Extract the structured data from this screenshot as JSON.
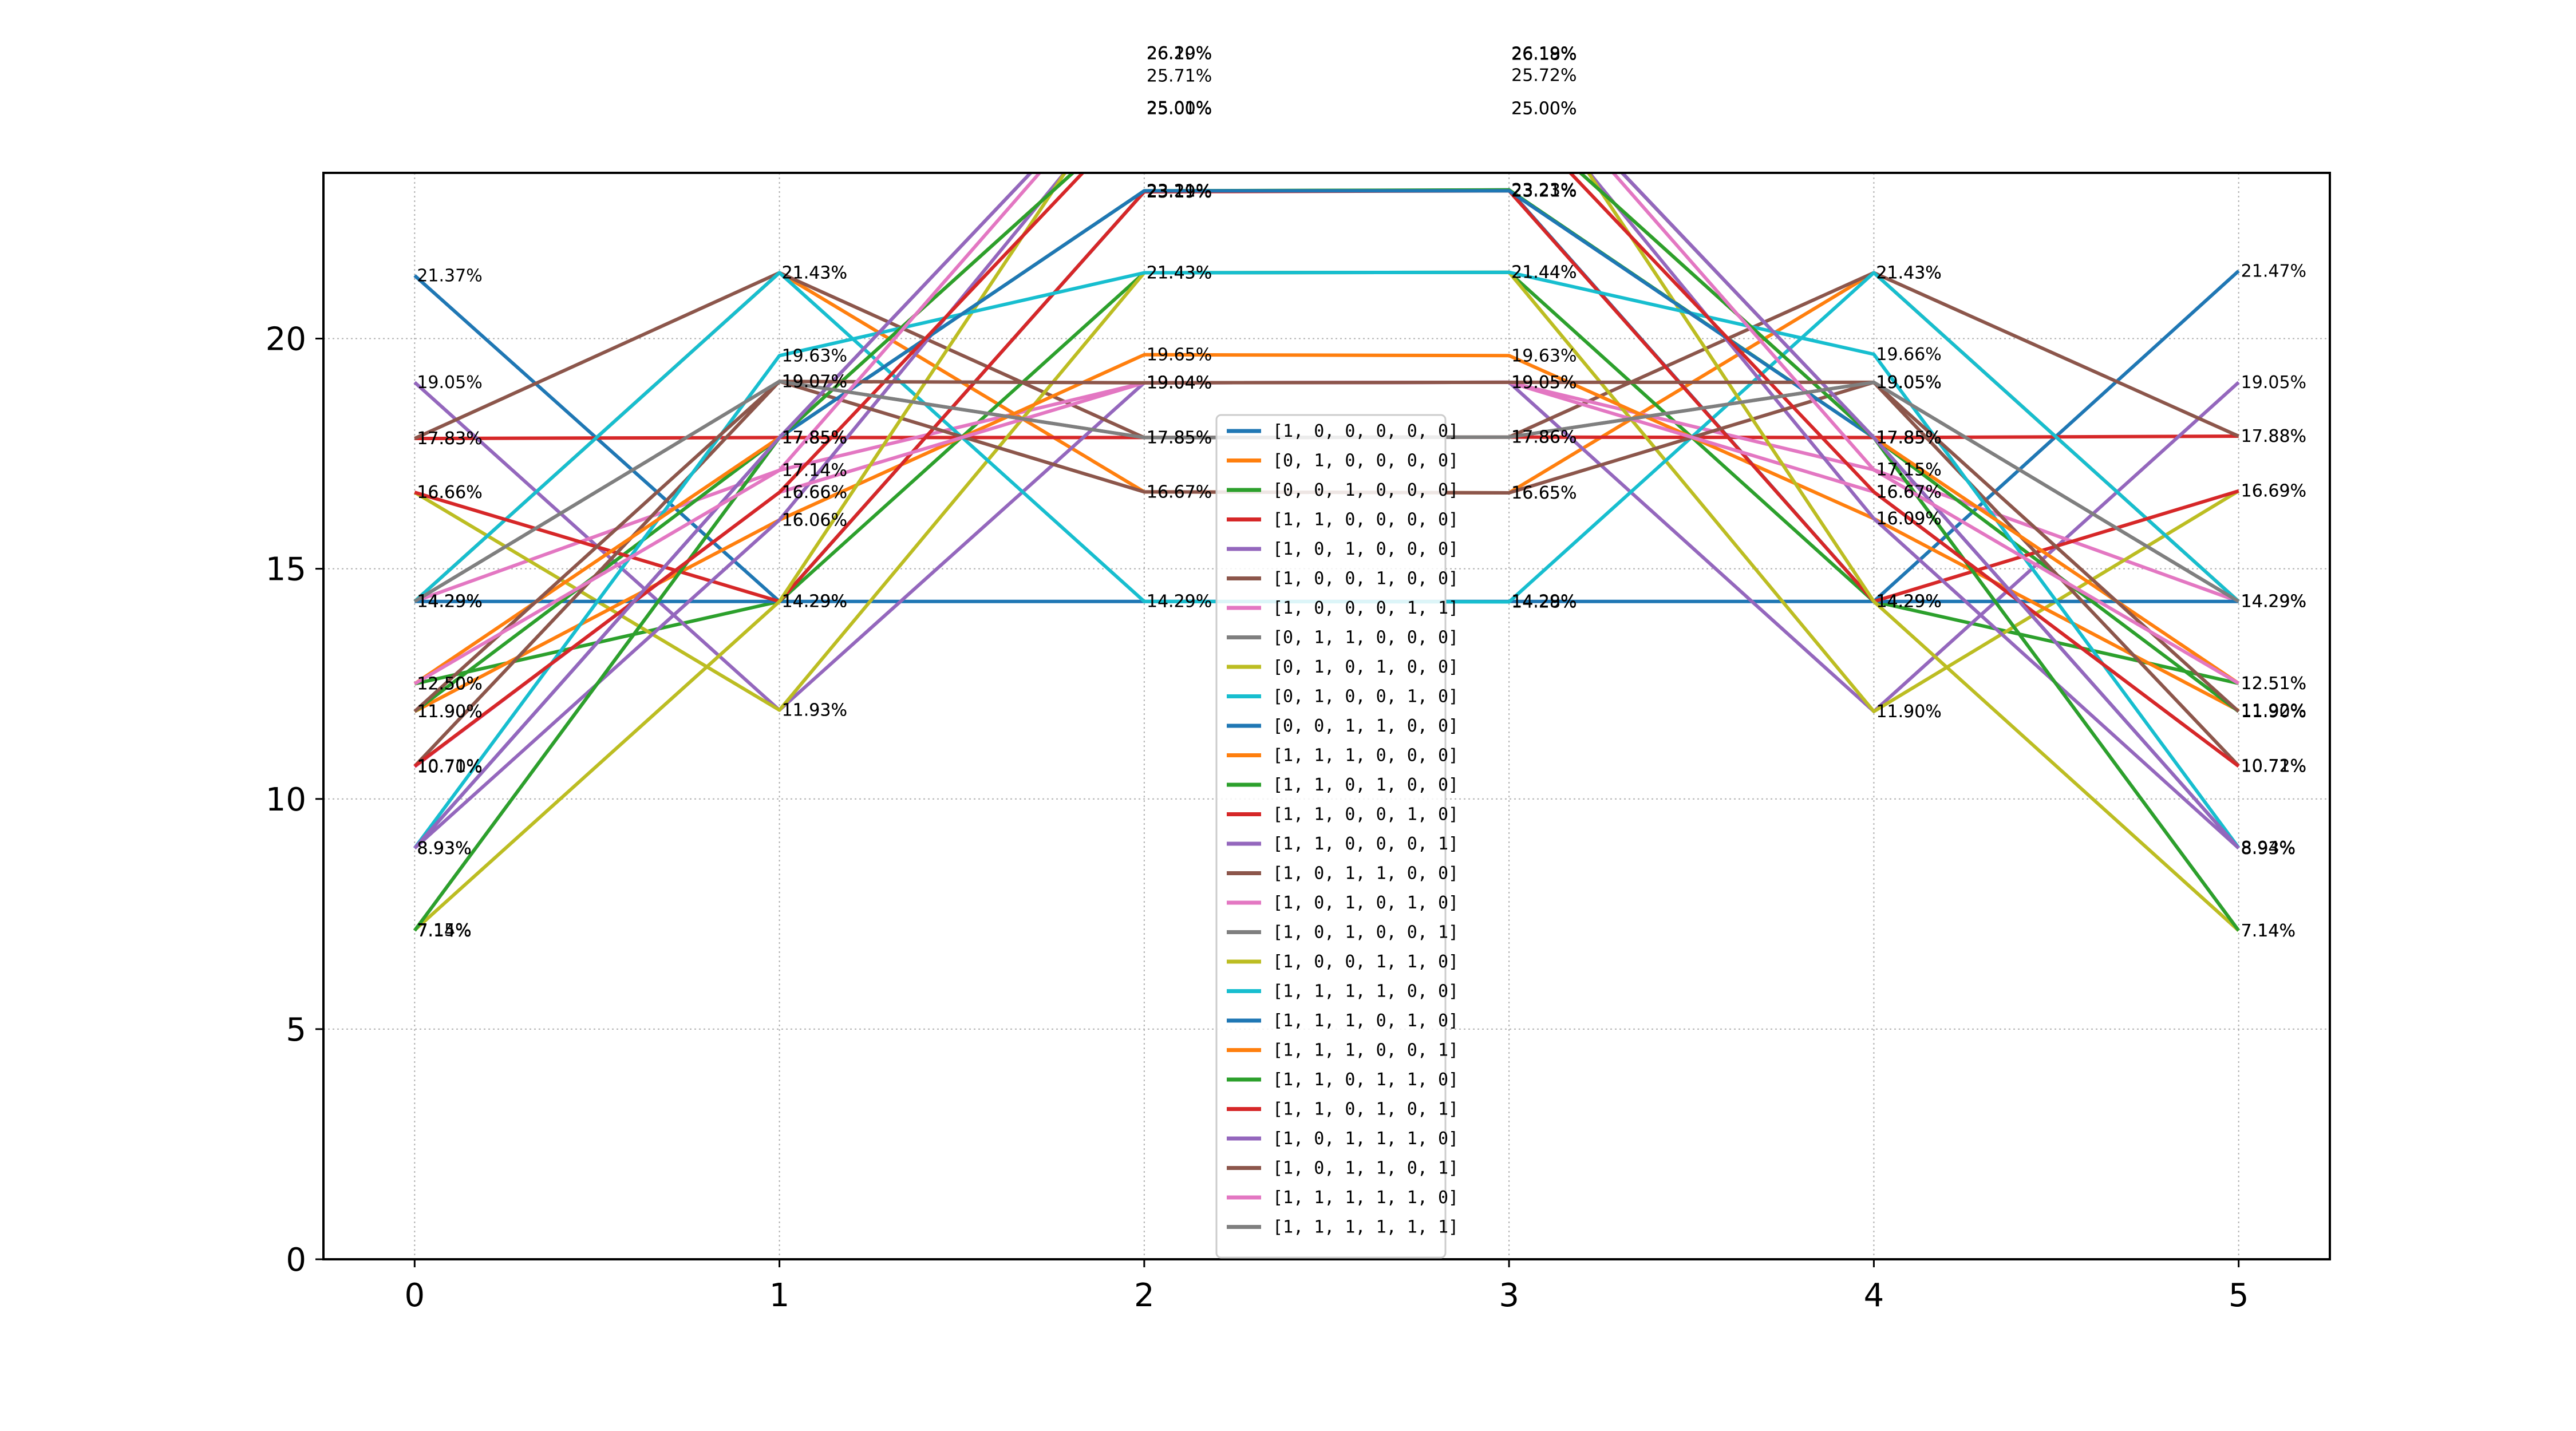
{
  "chart_data": {
    "type": "line",
    "title": "",
    "xlabel": "",
    "ylabel": "",
    "x": [
      0,
      1,
      2,
      3,
      4,
      5
    ],
    "xticks": [
      "0",
      "1",
      "2",
      "3",
      "4",
      "5"
    ],
    "yticks": [
      "0",
      "5",
      "10",
      "15",
      "20"
    ],
    "xlim": [
      -0.25,
      5.25
    ],
    "ylim": [
      0,
      23.6
    ],
    "grid": true,
    "legend_position": "center",
    "series": [
      {
        "name": "[1, 0, 0, 0, 0, 0]",
        "color": "#1f77b4",
        "values": [
          21.37,
          14.29,
          14.29,
          14.29,
          14.29,
          21.47
        ]
      },
      {
        "name": "[0, 1, 0, 0, 0, 0]",
        "color": "#ff7f0e",
        "values": [
          14.29,
          21.43,
          16.67,
          16.65,
          21.43,
          14.29
        ]
      },
      {
        "name": "[0, 0, 1, 0, 0, 0]",
        "color": "#2ca02c",
        "values": [
          12.5,
          14.29,
          21.43,
          21.44,
          14.29,
          12.51
        ]
      },
      {
        "name": "[1, 1, 0, 0, 0, 0]",
        "color": "#d62728",
        "values": [
          17.83,
          17.85,
          17.85,
          17.86,
          17.85,
          17.88
        ]
      },
      {
        "name": "[1, 0, 1, 0, 0, 0]",
        "color": "#9467bd",
        "values": [
          19.05,
          11.93,
          19.04,
          19.05,
          11.9,
          19.05
        ]
      },
      {
        "name": "[1, 0, 0, 1, 0, 0]",
        "color": "#8c564b",
        "values": [
          17.83,
          21.43,
          17.85,
          17.86,
          21.43,
          17.88
        ]
      },
      {
        "name": "[1, 0, 0, 0, 1, 1]",
        "color": "#e377c2",
        "values": [
          14.29,
          17.14,
          19.04,
          19.05,
          17.15,
          14.29
        ]
      },
      {
        "name": "[0, 1, 1, 0, 0, 0]",
        "color": "#7f7f7f",
        "values": [
          14.29,
          19.07,
          17.85,
          17.86,
          19.05,
          14.29
        ]
      },
      {
        "name": "[0, 1, 0, 1, 0, 0]",
        "color": "#bcbd22",
        "values": [
          16.66,
          11.93,
          21.43,
          21.44,
          11.9,
          16.69
        ]
      },
      {
        "name": "[0, 1, 0, 0, 1, 0]",
        "color": "#17becf",
        "values": [
          14.29,
          21.43,
          14.29,
          14.28,
          21.43,
          14.29
        ]
      },
      {
        "name": "[0, 0, 1, 1, 0, 0]",
        "color": "#1f77b4",
        "values": [
          14.29,
          14.29,
          23.19,
          23.23,
          14.29,
          14.29
        ]
      },
      {
        "name": "[1, 1, 1, 0, 0, 0]",
        "color": "#ff7f0e",
        "values": [
          11.9,
          16.06,
          19.65,
          19.63,
          16.09,
          11.92
        ]
      },
      {
        "name": "[1, 1, 0, 1, 0, 0]",
        "color": "#2ca02c",
        "values": [
          11.9,
          17.85,
          23.21,
          23.23,
          17.85,
          11.9
        ]
      },
      {
        "name": "[1, 1, 0, 0, 1, 0]",
        "color": "#d62728",
        "values": [
          16.66,
          14.29,
          23.19,
          23.21,
          14.29,
          16.69
        ]
      },
      {
        "name": "[1, 1, 0, 0, 0, 1]",
        "color": "#9467bd",
        "values": [
          8.93,
          16.06,
          25.71,
          25.72,
          16.09,
          8.93
        ]
      },
      {
        "name": "[1, 0, 1, 1, 0, 0]",
        "color": "#8c564b",
        "values": [
          10.71,
          19.07,
          16.67,
          16.65,
          19.05,
          10.72
        ]
      },
      {
        "name": "[1, 0, 1, 0, 1, 0]",
        "color": "#e377c2",
        "values": [
          10.7,
          16.66,
          19.04,
          19.05,
          16.67,
          10.71
        ]
      },
      {
        "name": "[1, 0, 1, 0, 0, 1]",
        "color": "#7f7f7f",
        "values": [
          7.14,
          17.85,
          26.2,
          26.18,
          17.85,
          7.14
        ]
      },
      {
        "name": "[1, 0, 0, 1, 1, 0]",
        "color": "#bcbd22",
        "values": [
          7.15,
          14.29,
          26.19,
          26.19,
          14.29,
          7.14
        ]
      },
      {
        "name": "[1, 1, 1, 1, 0, 0]",
        "color": "#17becf",
        "values": [
          8.93,
          19.63,
          21.43,
          21.44,
          19.66,
          8.94
        ]
      },
      {
        "name": "[1, 1, 1, 0, 1, 0]",
        "color": "#1f77b4",
        "values": [
          8.93,
          17.85,
          23.21,
          23.21,
          17.85,
          8.93
        ]
      },
      {
        "name": "[1, 1, 1, 0, 0, 1]",
        "color": "#ff7f0e",
        "values": [
          12.5,
          17.85,
          25.0,
          25.0,
          17.85,
          12.51
        ]
      },
      {
        "name": "[1, 1, 0, 1, 1, 0]",
        "color": "#2ca02c",
        "values": [
          7.14,
          17.85,
          25.0,
          25.0,
          17.85,
          7.14
        ]
      },
      {
        "name": "[1, 1, 0, 1, 0, 1]",
        "color": "#d62728",
        "values": [
          10.71,
          16.66,
          25.01,
          25.0,
          16.67,
          10.71
        ]
      },
      {
        "name": "[1, 0, 1, 1, 1, 0]",
        "color": "#9467bd",
        "values": [
          8.93,
          17.85,
          26.2,
          26.19,
          17.85,
          8.93
        ]
      },
      {
        "name": "[1, 0, 1, 1, 0, 1]",
        "color": "#8c564b",
        "values": [
          11.9,
          19.07,
          19.04,
          19.05,
          19.05,
          11.9
        ]
      },
      {
        "name": "[1, 1, 1, 1, 1, 0]",
        "color": "#e377c2",
        "values": [
          12.5,
          17.14,
          26.2,
          26.18,
          17.15,
          12.51
        ]
      },
      {
        "name": "[1, 1, 1, 1, 1, 1]",
        "color": "#7f7f7f",
        "values": [
          14.29,
          19.07,
          17.85,
          17.86,
          19.05,
          14.29
        ]
      }
    ]
  }
}
